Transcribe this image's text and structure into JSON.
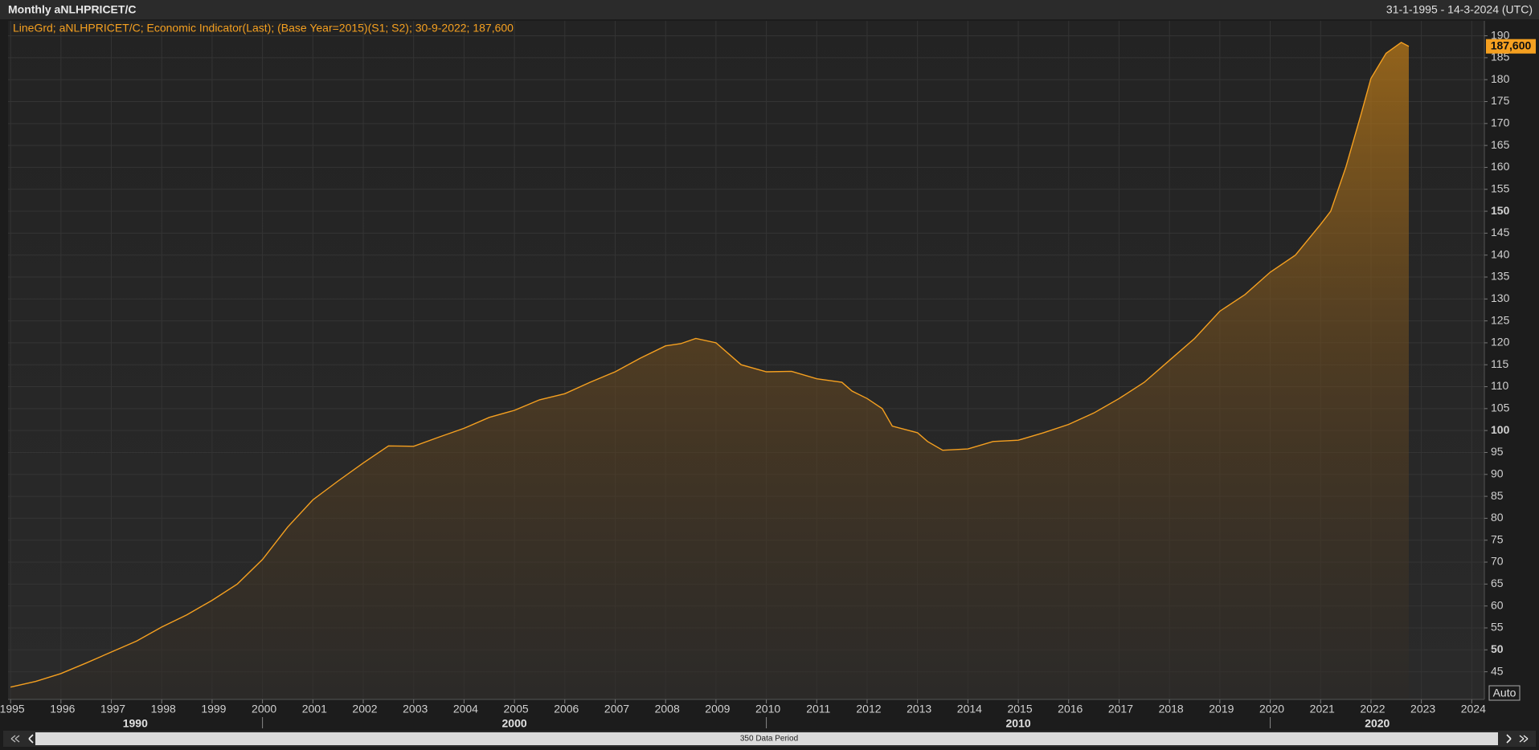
{
  "chart_data": {
    "type": "area-line",
    "title": "Monthly aNLHPRICET/C",
    "subtitle": "31-1-1995 - 14-3-2024 (UTC)",
    "x": [
      1995.0,
      1995.5,
      1996.0,
      1996.5,
      1997.0,
      1997.5,
      1998.0,
      1998.5,
      1999.0,
      1999.5,
      2000.0,
      2000.5,
      2001.0,
      2001.5,
      2002.0,
      2002.5,
      2003.0,
      2003.5,
      2004.0,
      2004.5,
      2005.0,
      2005.5,
      2006.0,
      2006.5,
      2007.0,
      2007.5,
      2008.0,
      2008.3,
      2008.6,
      2009.0,
      2009.5,
      2010.0,
      2010.5,
      2011.0,
      2011.5,
      2011.7,
      2012.0,
      2012.3,
      2012.5,
      2013.0,
      2013.2,
      2013.5,
      2014.0,
      2014.5,
      2015.0,
      2015.5,
      2016.0,
      2016.5,
      2017.0,
      2017.5,
      2018.0,
      2018.5,
      2019.0,
      2019.5,
      2020.0,
      2020.5,
      2021.0,
      2021.2,
      2021.5,
      2021.8,
      2022.0,
      2022.3,
      2022.6,
      2022.75
    ],
    "series": [
      {
        "name": "LineGrd; aNLHPRICET/C; Economic Indicator(Last); (Base Year=2015)(S1; S2); 30-9-2022; 187,600",
        "color": "#f5a020",
        "values": [
          41.5,
          42.8,
          44.6,
          47.0,
          49.5,
          52.0,
          55.2,
          58.0,
          61.3,
          65.0,
          70.6,
          78.0,
          84.2,
          88.5,
          92.6,
          96.5,
          96.4,
          98.5,
          100.5,
          103.0,
          104.6,
          107.0,
          108.4,
          111.0,
          113.4,
          116.5,
          119.3,
          119.8,
          121.0,
          120.0,
          115.0,
          113.4,
          113.5,
          111.8,
          111.0,
          109.0,
          107.3,
          105.0,
          101.0,
          99.5,
          97.5,
          95.5,
          95.8,
          97.5,
          97.8,
          99.5,
          101.4,
          104.0,
          107.3,
          111.0,
          116.0,
          121.0,
          127.2,
          131.0,
          136.1,
          140.0,
          147.0,
          150.0,
          160.0,
          172.0,
          180.3,
          186.0,
          188.5,
          187.6
        ]
      }
    ],
    "last_value": {
      "value": 187.6,
      "label": "187,600"
    },
    "xlim": [
      1994.95,
      2024.25
    ],
    "ylim": [
      38.7,
      193.4
    ],
    "yticks": [
      45,
      50,
      55,
      60,
      65,
      70,
      75,
      80,
      85,
      90,
      95,
      100,
      105,
      110,
      115,
      120,
      125,
      130,
      135,
      140,
      145,
      150,
      155,
      160,
      165,
      170,
      175,
      180,
      185,
      190
    ],
    "xticks": [
      1995,
      1996,
      1997,
      1998,
      1999,
      2000,
      2001,
      2002,
      2003,
      2004,
      2005,
      2006,
      2007,
      2008,
      2009,
      2010,
      2011,
      2012,
      2013,
      2014,
      2015,
      2016,
      2017,
      2018,
      2019,
      2020,
      2021,
      2022,
      2023,
      2024
    ],
    "decade_ticks": [
      1990,
      2000,
      2010,
      2020
    ],
    "grid": true
  },
  "ui": {
    "auto_button": "Auto",
    "period_label": "350 Data Period"
  }
}
